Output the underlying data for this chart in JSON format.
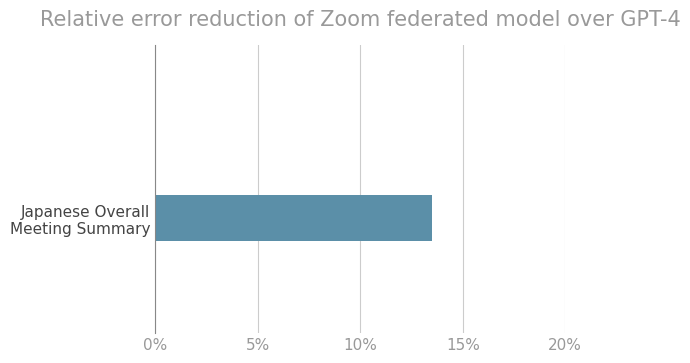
{
  "title": "Relative error reduction of Zoom federated model over GPT-4",
  "categories": [
    "Japanese Overall\nMeeting Summary"
  ],
  "values": [
    0.135
  ],
  "bar_color": "#5b8fa8",
  "xlim": [
    0,
    0.2
  ],
  "xticks": [
    0.0,
    0.05,
    0.1,
    0.15,
    0.2
  ],
  "xtick_labels": [
    "0%",
    "5%",
    "10%",
    "15%",
    "20%"
  ],
  "title_fontsize": 15,
  "tick_fontsize": 11,
  "label_fontsize": 11,
  "background_color": "#ffffff",
  "grid_color": "#cccccc",
  "bar_height": 0.4,
  "ylim": [
    -1.0,
    1.5
  ]
}
